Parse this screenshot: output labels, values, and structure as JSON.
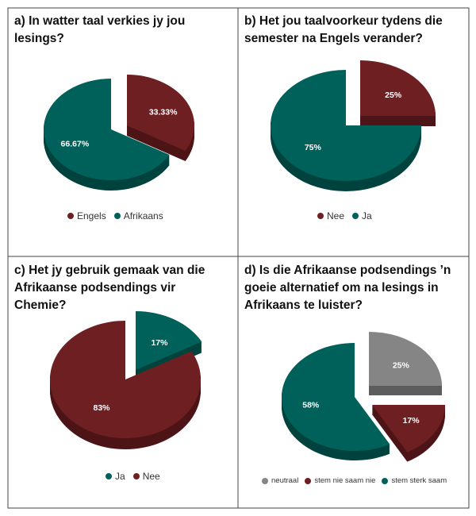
{
  "chart_data": [
    {
      "type": "pie",
      "title": "a) In watter taal verkies jy jou lesings?",
      "slices": [
        {
          "label": "Engels",
          "value": 33.33,
          "display": "33.33%",
          "color": "#6e1f22",
          "exploded": true
        },
        {
          "label": "Afrikaans",
          "value": 66.67,
          "display": "66.67%",
          "color": "#00615a",
          "exploded": false
        }
      ],
      "legend": "bottom"
    },
    {
      "type": "pie",
      "title": "b) Het jou taalvoorkeur tydens die semester na Engels verander?",
      "slices": [
        {
          "label": "Nee",
          "value": 25,
          "display": "25%",
          "color": "#6e1f22",
          "exploded": true
        },
        {
          "label": "Ja",
          "value": 75,
          "display": "75%",
          "color": "#00615a",
          "exploded": false
        }
      ],
      "legend": "bottom"
    },
    {
      "type": "pie",
      "title": "c) Het jy gebruik gemaak van die Afrikaanse podsendings vir Chemie?",
      "slices": [
        {
          "label": "Ja",
          "value": 17,
          "display": "17%",
          "color": "#00615a",
          "exploded": true
        },
        {
          "label": "Nee",
          "value": 83,
          "display": "83%",
          "color": "#6e1f22",
          "exploded": false
        }
      ],
      "legend": "bottom"
    },
    {
      "type": "pie",
      "title": "d) Is die Afrikaanse podsendings ’n goeie alternatief om na lesings in Afrikaans te luister?",
      "slices": [
        {
          "label": "neutraal",
          "value": 25,
          "display": "25%",
          "color": "#858585",
          "exploded": true
        },
        {
          "label": "stem nie saam nie",
          "value": 17,
          "display": "17%",
          "color": "#6e1f22",
          "exploded": true
        },
        {
          "label": "stem sterk saam",
          "value": 58,
          "display": "58%",
          "color": "#00615a",
          "exploded": false
        }
      ],
      "legend": "bottom"
    }
  ]
}
